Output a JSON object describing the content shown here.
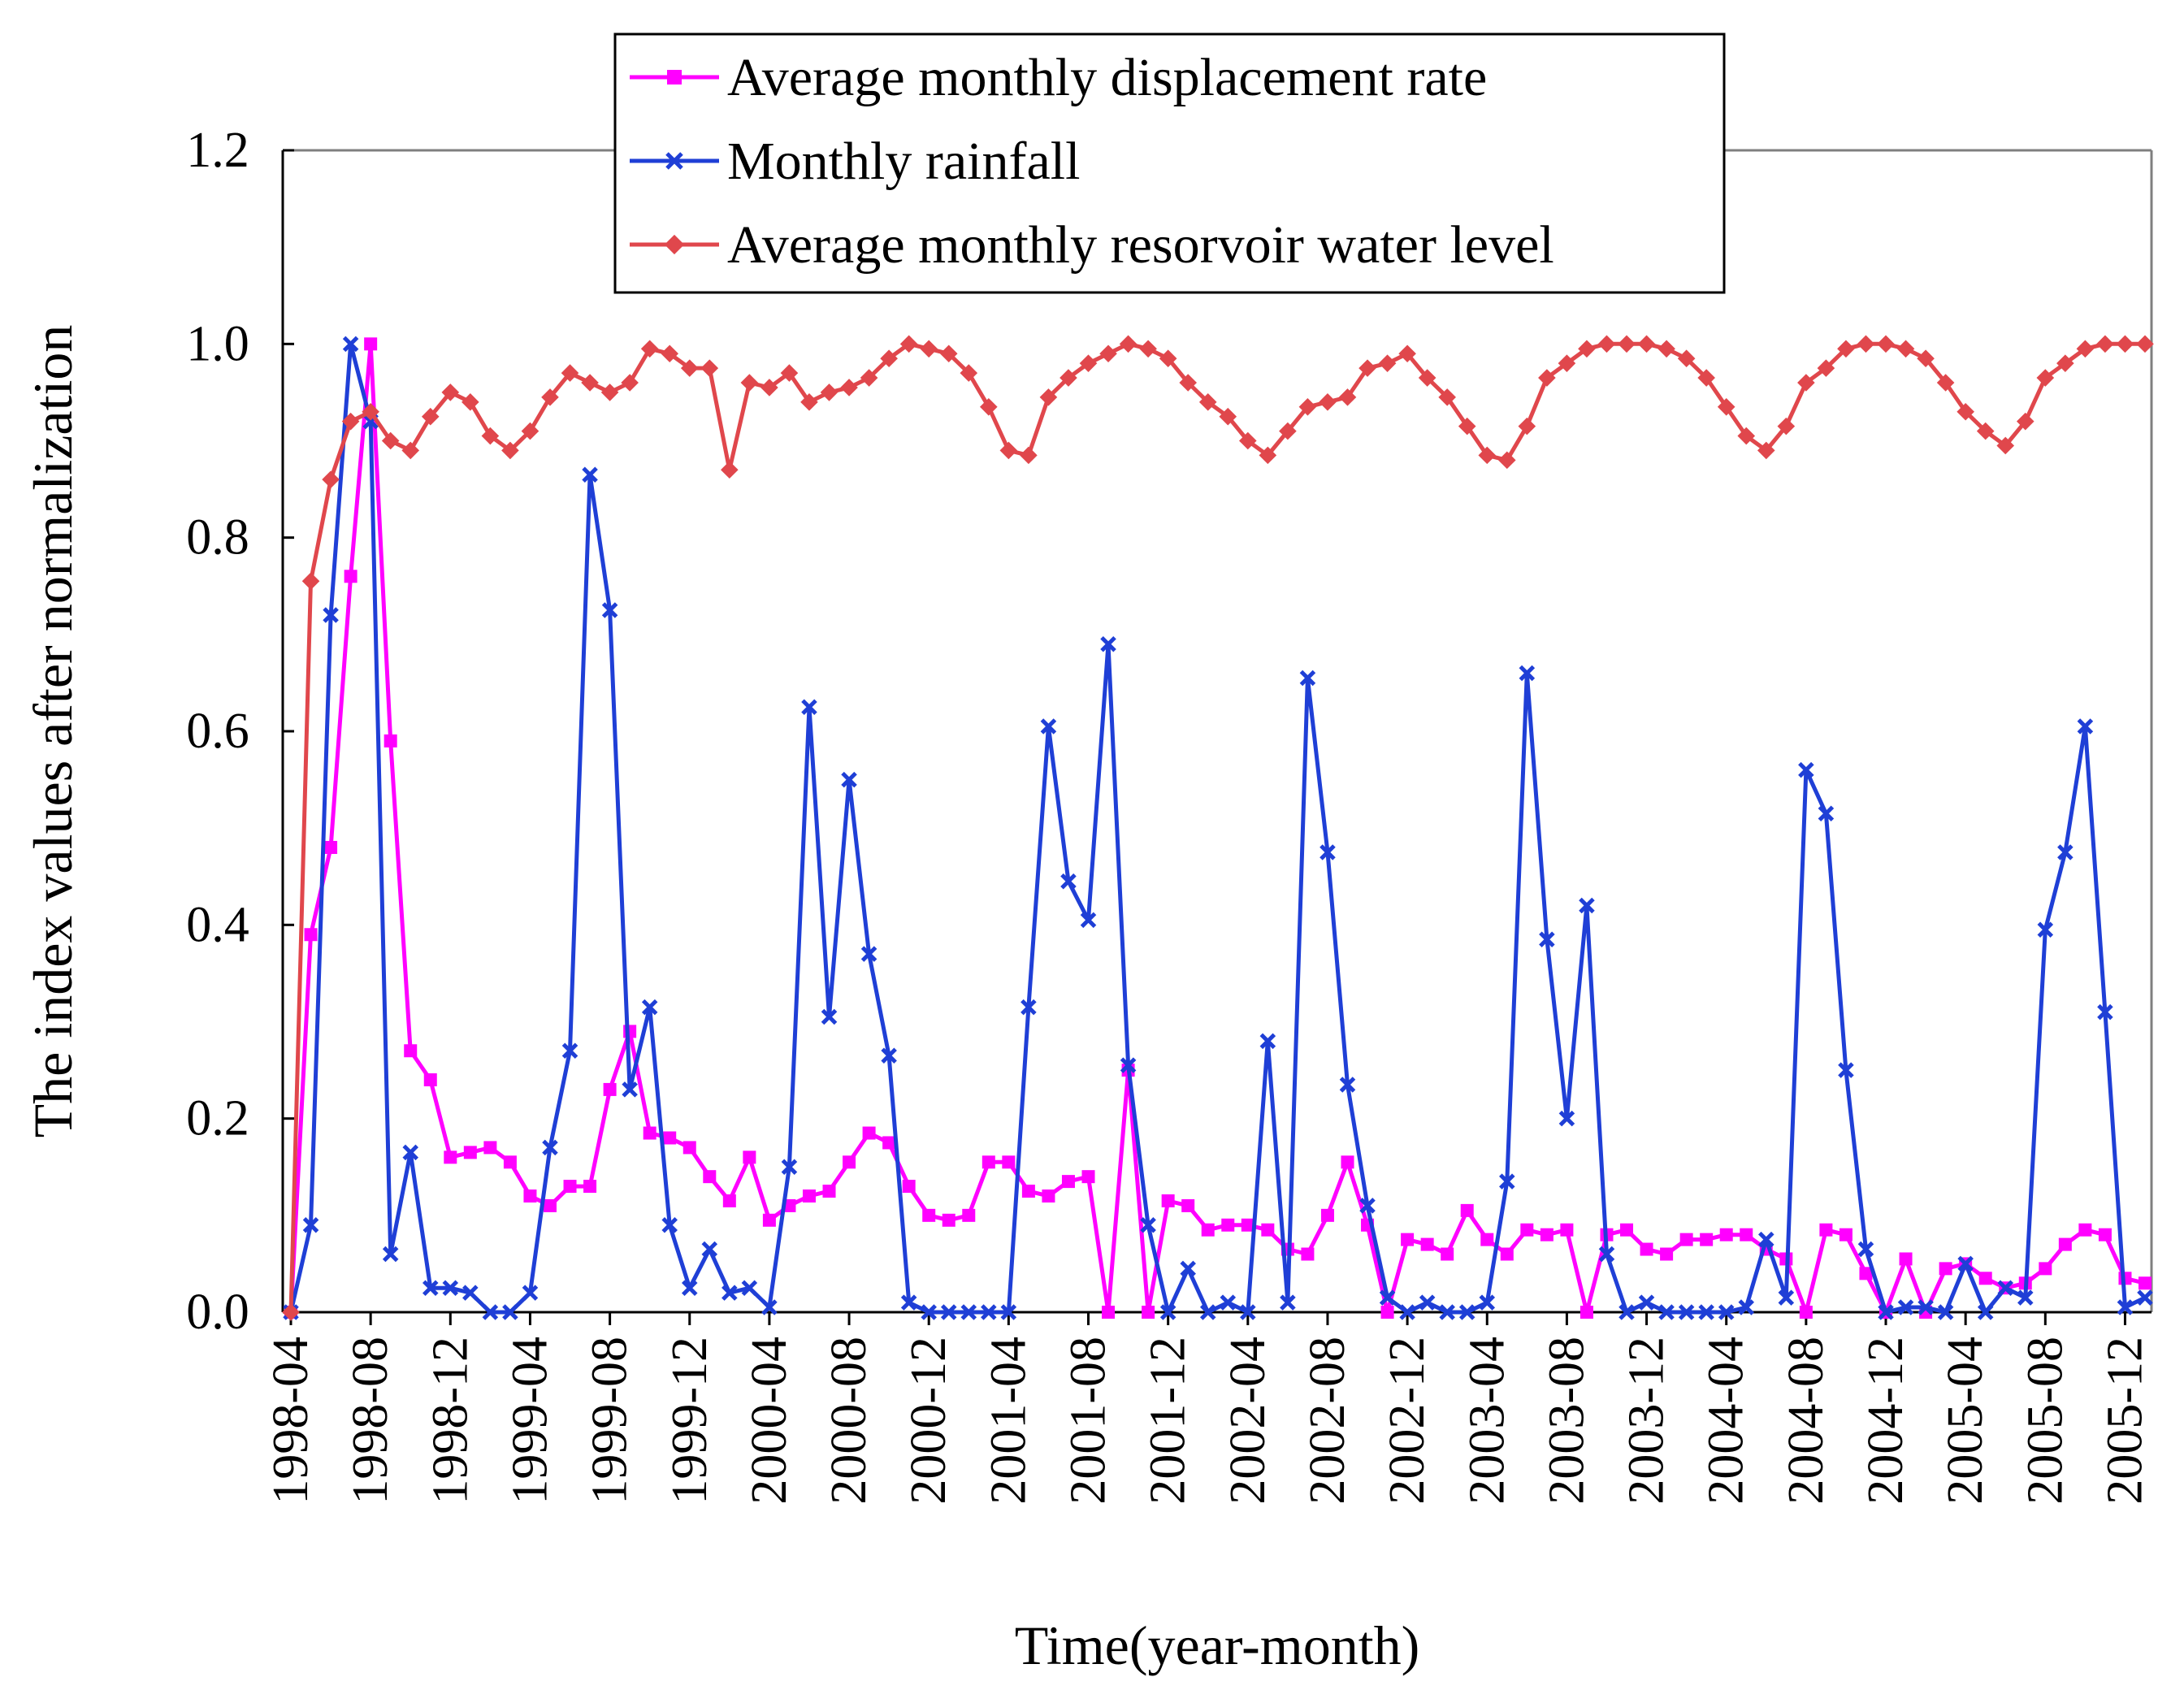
{
  "chart_data": {
    "type": "line",
    "title": "",
    "xlabel": "Time(year-month)",
    "ylabel": "The index values after  normalization",
    "ylim": [
      0,
      1.2
    ],
    "yticks": [
      0,
      0.2,
      0.4,
      0.6,
      0.8,
      1.0,
      1.2
    ],
    "ytick_labels": [
      "0.0",
      "0.2",
      "0.4",
      "0.6",
      "0.8",
      "1.0",
      "1.2"
    ],
    "grid": false,
    "legend_position": "top-center",
    "x_start": "1998-04",
    "x_end": "2006-01",
    "n_points": 94,
    "x_tick_labels": [
      "1998-04",
      "1998-08",
      "1998-12",
      "1999-04",
      "1999-08",
      "1999-12",
      "2000-04",
      "2000-08",
      "2000-12",
      "2001-04",
      "2001-08",
      "2001-12",
      "2002-04",
      "2002-08",
      "2002-12",
      "2003-04",
      "2003-08",
      "2003-12",
      "2004-04",
      "2004-08",
      "2004-12",
      "2005-04",
      "2005-08",
      "2005-12"
    ],
    "series": [
      {
        "name": "Average monthly displacement rate",
        "color": "#ff00ff",
        "marker": "square",
        "values": [
          0.0,
          0.39,
          0.48,
          0.76,
          1.0,
          0.59,
          0.27,
          0.24,
          0.16,
          0.165,
          0.17,
          0.155,
          0.12,
          0.11,
          0.13,
          0.13,
          0.23,
          0.29,
          0.185,
          0.18,
          0.17,
          0.14,
          0.115,
          0.16,
          0.095,
          0.11,
          0.12,
          0.125,
          0.155,
          0.185,
          0.175,
          0.13,
          0.1,
          0.095,
          0.1,
          0.155,
          0.155,
          0.125,
          0.12,
          0.135,
          0.14,
          0.0,
          0.25,
          0.0,
          0.115,
          0.11,
          0.085,
          0.09,
          0.09,
          0.085,
          0.065,
          0.06,
          0.1,
          0.155,
          0.09,
          0.0,
          0.075,
          0.07,
          0.06,
          0.105,
          0.075,
          0.06,
          0.085,
          0.08,
          0.085,
          0.0,
          0.08,
          0.085,
          0.065,
          0.06,
          0.075,
          0.075,
          0.08,
          0.08,
          0.065,
          0.055,
          0.0,
          0.085,
          0.08,
          0.04,
          0.0,
          0.055,
          0.0,
          0.045,
          0.05,
          0.035,
          0.025,
          0.03,
          0.045,
          0.07,
          0.085,
          0.08,
          0.035,
          0.03
        ]
      },
      {
        "name": "Monthly rainfall",
        "color": "#1f3fd6",
        "marker": "x",
        "values": [
          0.0,
          0.09,
          0.72,
          1.0,
          0.92,
          0.06,
          0.165,
          0.025,
          0.025,
          0.02,
          0.0,
          0.0,
          0.02,
          0.17,
          0.27,
          0.865,
          0.725,
          0.23,
          0.315,
          0.09,
          0.025,
          0.065,
          0.02,
          0.025,
          0.005,
          0.15,
          0.625,
          0.305,
          0.55,
          0.37,
          0.265,
          0.01,
          0.0,
          0.0,
          0.0,
          0.0,
          0.0,
          0.315,
          0.605,
          0.445,
          0.405,
          0.69,
          0.255,
          0.09,
          0.0,
          0.045,
          0.0,
          0.01,
          0.0,
          0.28,
          0.01,
          0.655,
          0.475,
          0.235,
          0.11,
          0.015,
          0.0,
          0.01,
          0.0,
          0.0,
          0.01,
          0.135,
          0.66,
          0.385,
          0.2,
          0.42,
          0.06,
          0.0,
          0.01,
          0.0,
          0.0,
          0.0,
          0.0,
          0.005,
          0.075,
          0.015,
          0.56,
          0.515,
          0.25,
          0.065,
          0.0,
          0.005,
          0.005,
          0.0,
          0.05,
          0.0,
          0.025,
          0.015,
          0.395,
          0.475,
          0.605,
          0.31,
          0.005,
          0.015
        ]
      },
      {
        "name": "Average monthly resorvoir water level",
        "color": "#e0474c",
        "marker": "diamond",
        "values": [
          0.0,
          0.755,
          0.86,
          0.92,
          0.93,
          0.9,
          0.89,
          0.925,
          0.95,
          0.94,
          0.905,
          0.89,
          0.91,
          0.945,
          0.97,
          0.96,
          0.95,
          0.96,
          0.995,
          0.99,
          0.975,
          0.975,
          0.87,
          0.96,
          0.955,
          0.97,
          0.94,
          0.95,
          0.955,
          0.965,
          0.985,
          1.0,
          0.995,
          0.99,
          0.97,
          0.935,
          0.89,
          0.885,
          0.945,
          0.965,
          0.98,
          0.99,
          1.0,
          0.995,
          0.985,
          0.96,
          0.94,
          0.925,
          0.9,
          0.885,
          0.91,
          0.935,
          0.94,
          0.945,
          0.975,
          0.98,
          0.99,
          0.965,
          0.945,
          0.915,
          0.885,
          0.88,
          0.915,
          0.965,
          0.98,
          0.995,
          1.0,
          1.0,
          1.0,
          0.995,
          0.985,
          0.965,
          0.935,
          0.905,
          0.89,
          0.915,
          0.96,
          0.975,
          0.995,
          1.0,
          1.0,
          0.995,
          0.985,
          0.96,
          0.93,
          0.91,
          0.895,
          0.92,
          0.965,
          0.98,
          0.995,
          1.0,
          1.0,
          1.0
        ]
      }
    ]
  }
}
